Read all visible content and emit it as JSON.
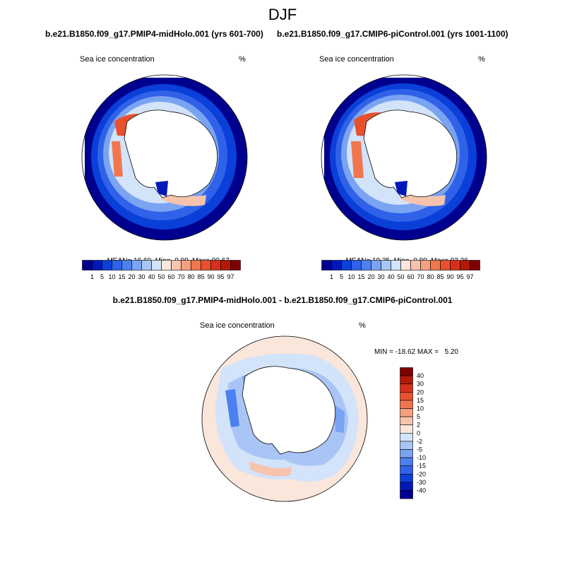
{
  "page": {
    "title": "DJF"
  },
  "panels": [
    {
      "run_title": "b.e21.B1850.f09_g17.PMIP4-midHolo.001 (yrs 601-700)",
      "variable": "Sea ice concentration",
      "units": "%",
      "stats": {
        "mean_label": "MEAN=",
        "mean": "16.69",
        "min_label": "Min=",
        "min": "0.00",
        "max_label": "Max=",
        "max": "90.67"
      }
    },
    {
      "run_title": "b.e21.B1850.f09_g17.CMIP6-piControl.001 (yrs 1001-1100)",
      "variable": "Sea ice concentration",
      "units": "%",
      "stats": {
        "mean_label": "MEAN=",
        "mean": "19.35",
        "min_label": "Min=",
        "min": "0.00",
        "max_label": "Max=",
        "max": "93.26"
      }
    }
  ],
  "diff_panel": {
    "title": "b.e21.B1850.f09_g17.PMIP4-midHolo.001 - b.e21.B1850.f09_g17.CMIP6-piControl.001",
    "variable": "Sea ice concentration",
    "units": "%",
    "minmax": "MIN = -18.62 MAX =   5.20"
  },
  "colorbar_abs": {
    "labels": [
      "1",
      "5",
      "10",
      "15",
      "20",
      "30",
      "40",
      "50",
      "60",
      "70",
      "80",
      "85",
      "90",
      "95",
      "97"
    ],
    "colors": [
      "#00008f",
      "#0018b8",
      "#0a3fd8",
      "#2f62e8",
      "#4c80ee",
      "#7aa3f2",
      "#a9c5f6",
      "#d2e3fa",
      "#fbe6dc",
      "#f8c3ad",
      "#f5a07f",
      "#f0764f",
      "#e8512e",
      "#d6301c",
      "#b41808",
      "#800000"
    ]
  },
  "colorbar_diff": {
    "labels": [
      "40",
      "30",
      "20",
      "15",
      "10",
      "5",
      "2",
      "0",
      "-2",
      "-5",
      "-10",
      "-15",
      "-20",
      "-30",
      "-40"
    ],
    "colors": [
      "#800000",
      "#b41808",
      "#d6301c",
      "#e8512e",
      "#f0764f",
      "#f5a07f",
      "#f8c3ad",
      "#fbe6dc",
      "#d2e3fa",
      "#a9c5f6",
      "#7aa3f2",
      "#4c80ee",
      "#2f62e8",
      "#0a3fd8",
      "#0018b8",
      "#00008f"
    ]
  }
}
